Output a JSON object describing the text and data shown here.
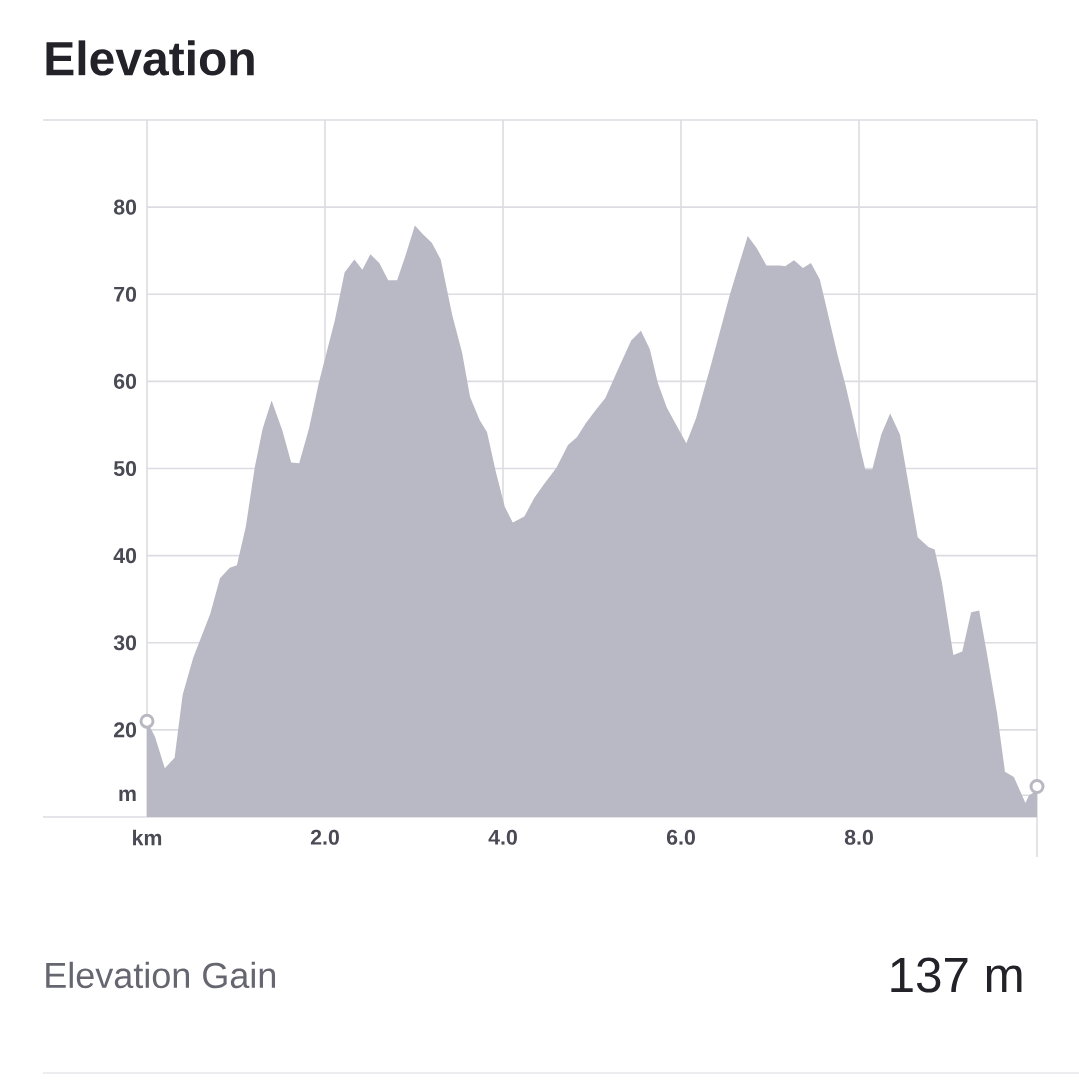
{
  "chart_data": {
    "type": "area",
    "title": "Elevation",
    "annotations": [
      "Elevation Gain",
      "137 m"
    ],
    "xlim": [
      0,
      10
    ],
    "ylim": [
      10,
      90
    ],
    "xticks": [
      {
        "value": 0,
        "label": "km"
      },
      {
        "value": 2,
        "label": "2.0"
      },
      {
        "value": 4,
        "label": "4.0"
      },
      {
        "value": 6,
        "label": "6.0"
      },
      {
        "value": 8,
        "label": "8.0"
      }
    ],
    "yticks": [
      {
        "value": 12.5,
        "label": "m"
      },
      20,
      30,
      40,
      50,
      60,
      70,
      80
    ],
    "grid": true,
    "series": [
      {
        "color": "#b9b9c5",
        "x": [
          0,
          0.09,
          0.2,
          0.31,
          0.4,
          0.52,
          0.71,
          0.82,
          0.93,
          1.01,
          1.11,
          1.21,
          1.3,
          1.4,
          1.52,
          1.62,
          1.71,
          1.82,
          1.93,
          2.11,
          2.22,
          2.33,
          2.42,
          2.51,
          2.61,
          2.71,
          2.81,
          2.9,
          3.01,
          3.1,
          3.2,
          3.3,
          3.43,
          3.54,
          3.63,
          3.74,
          3.82,
          3.92,
          4.02,
          4.11,
          4.24,
          4.35,
          4.46,
          4.6,
          4.73,
          4.83,
          4.93,
          5.04,
          5.15,
          5.28,
          5.44,
          5.55,
          5.65,
          5.74,
          5.84,
          5.99,
          6.06,
          6.17,
          6.35,
          6.55,
          6.75,
          6.85,
          6.96,
          7.11,
          7.17,
          7.27,
          7.37,
          7.46,
          7.56,
          7.76,
          7.85,
          7.98,
          8.07,
          8.15,
          8.25,
          8.35,
          8.46,
          8.55,
          8.66,
          8.78,
          8.85,
          8.93,
          9.06,
          9.16,
          9.26,
          9.35,
          9.43,
          9.55,
          9.64,
          9.74,
          9.87,
          9.91,
          10
        ],
        "values": [
          21,
          19.2,
          15.6,
          16.8,
          24,
          28.3,
          33.3,
          37.4,
          38.6,
          38.9,
          43.3,
          50.1,
          54.6,
          57.8,
          54.4,
          50.7,
          50.6,
          54.6,
          59.8,
          67,
          72.5,
          74,
          72.8,
          74.6,
          73.6,
          71.6,
          71.6,
          74.3,
          77.9,
          76.9,
          75.9,
          74,
          67.6,
          63.3,
          58.2,
          55.5,
          54.2,
          49.6,
          45.6,
          43.8,
          44.5,
          46.6,
          48.2,
          50.1,
          52.7,
          53.6,
          55.2,
          56.7,
          58.1,
          61.1,
          64.7,
          65.8,
          63.7,
          59.8,
          57,
          54.2,
          52.9,
          55.8,
          62.4,
          70,
          76.7,
          75.3,
          73.3,
          73.3,
          73.2,
          73.9,
          73,
          73.6,
          71.7,
          63,
          59.5,
          53.8,
          49.9,
          49.9,
          53.9,
          56.3,
          53.9,
          48.6,
          42.1,
          41,
          40.7,
          37,
          28.6,
          29,
          33.5,
          33.7,
          29.2,
          22,
          15.2,
          14.6,
          11.6,
          12.5,
          13
        ]
      },
      {
        "type": "scatter",
        "marker": "circle",
        "color": "#b8b8c0",
        "x": [
          0,
          10
        ],
        "values": [
          21,
          13.5
        ]
      }
    ]
  }
}
